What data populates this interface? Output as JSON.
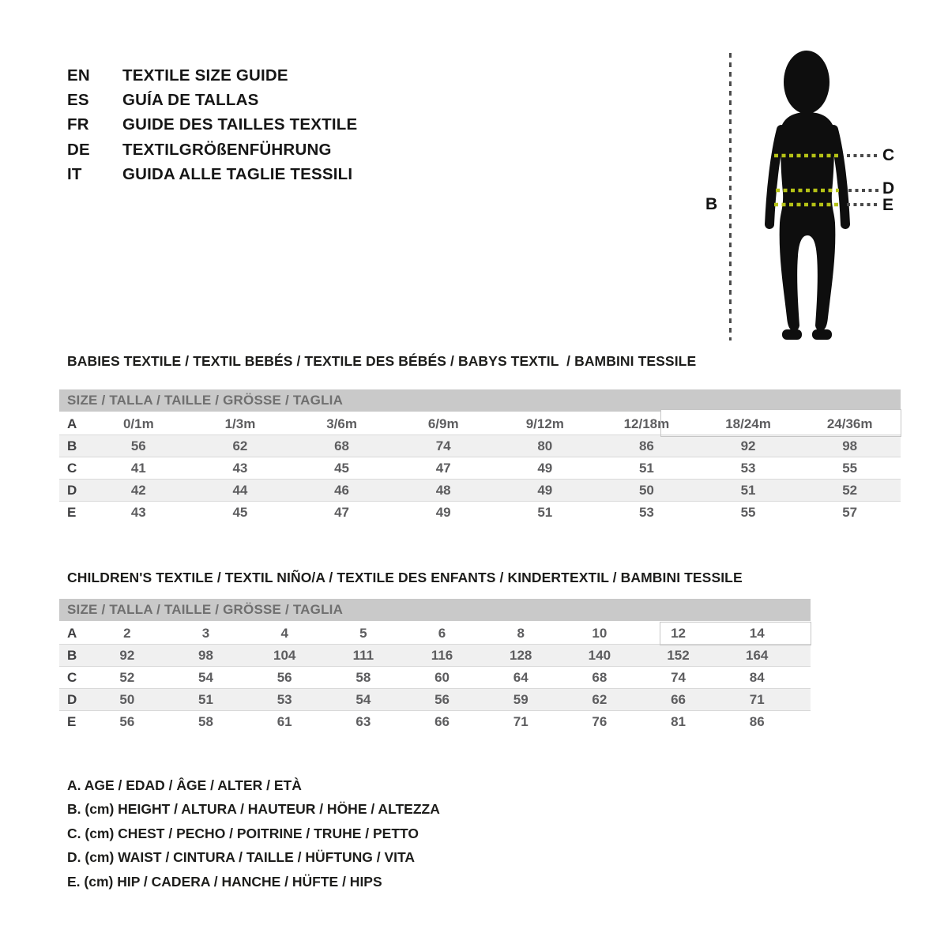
{
  "language_guide": {
    "items": [
      {
        "code": "EN",
        "label": "TEXTILE SIZE GUIDE"
      },
      {
        "code": "ES",
        "label": "GUÍA DE TALLAS"
      },
      {
        "code": "FR",
        "label": "GUIDE DES TAILLES TEXTILE"
      },
      {
        "code": "DE",
        "label": "TEXTILGRÖßENFÜHRUNG"
      },
      {
        "code": "IT",
        "label": "GUIDA ALLE TAGLIE TESSILI"
      }
    ]
  },
  "figure": {
    "labels": {
      "height": "B",
      "chest": "C",
      "waist": "D",
      "hip": "E"
    },
    "colors": {
      "silhouette": "#0e0e0e",
      "measure_line": "#b5c216",
      "extension_line": "#4a4a4a"
    }
  },
  "babies_section": {
    "title": "BABIES TEXTILE / TEXTIL BEBÉS / TEXTILE DES BÉBÉS / BABYS TEXTIL  / BAMBINI TESSILE",
    "size_header": "SIZE / TALLA / TAILLE / GRÖSSE / TAGLIA",
    "rows": [
      {
        "label": "A",
        "values": [
          "0/1m",
          "1/3m",
          "3/6m",
          "6/9m",
          "9/12m",
          "12/18m",
          "18/24m",
          "24/36m"
        ]
      },
      {
        "label": "B",
        "values": [
          "56",
          "62",
          "68",
          "74",
          "80",
          "86",
          "92",
          "98"
        ]
      },
      {
        "label": "C",
        "values": [
          "41",
          "43",
          "45",
          "47",
          "49",
          "51",
          "53",
          "55"
        ]
      },
      {
        "label": "D",
        "values": [
          "42",
          "44",
          "46",
          "48",
          "49",
          "50",
          "51",
          "52"
        ]
      },
      {
        "label": "E",
        "values": [
          "43",
          "45",
          "47",
          "49",
          "51",
          "53",
          "55",
          "57"
        ]
      }
    ]
  },
  "children_section": {
    "title": "CHILDREN'S TEXTILE / TEXTIL NIÑO/A / TEXTILE DES ENFANTS / KINDERTEXTIL / BAMBINI TESSILE",
    "size_header": "SIZE / TALLA / TAILLE / GRÖSSE / TAGLIA",
    "rows": [
      {
        "label": "A",
        "values": [
          "2",
          "3",
          "4",
          "5",
          "6",
          "8",
          "10",
          "12",
          "14"
        ]
      },
      {
        "label": "B",
        "values": [
          "92",
          "98",
          "104",
          "111",
          "116",
          "128",
          "140",
          "152",
          "164"
        ]
      },
      {
        "label": "C",
        "values": [
          "52",
          "54",
          "56",
          "58",
          "60",
          "64",
          "68",
          "74",
          "84"
        ]
      },
      {
        "label": "D",
        "values": [
          "50",
          "51",
          "53",
          "54",
          "56",
          "59",
          "62",
          "66",
          "71"
        ]
      },
      {
        "label": "E",
        "values": [
          "56",
          "58",
          "61",
          "63",
          "66",
          "71",
          "76",
          "81",
          "86"
        ]
      }
    ]
  },
  "legend": {
    "items": [
      "A. AGE / EDAD / ÂGE / ALTER / ETÀ",
      "B. (cm) HEIGHT / ALTURA / HAUTEUR / HÖHE / ALTEZZA",
      "C. (cm) CHEST / PECHO / POITRINE / TRUHE / PETTO",
      "D. (cm) WAIST / CINTURA / TAILLE / HÜFTUNG / VITA",
      "E. (cm) HIP / CADERA / HANCHE / HÜFTE / HIPS"
    ]
  },
  "theme": {
    "size_bar_bg": "#c9c9c9",
    "size_bar_text": "#6f6f6f",
    "zebra_row_bg": "#f0f0f0",
    "highlight_border": "#c6c6c6"
  }
}
